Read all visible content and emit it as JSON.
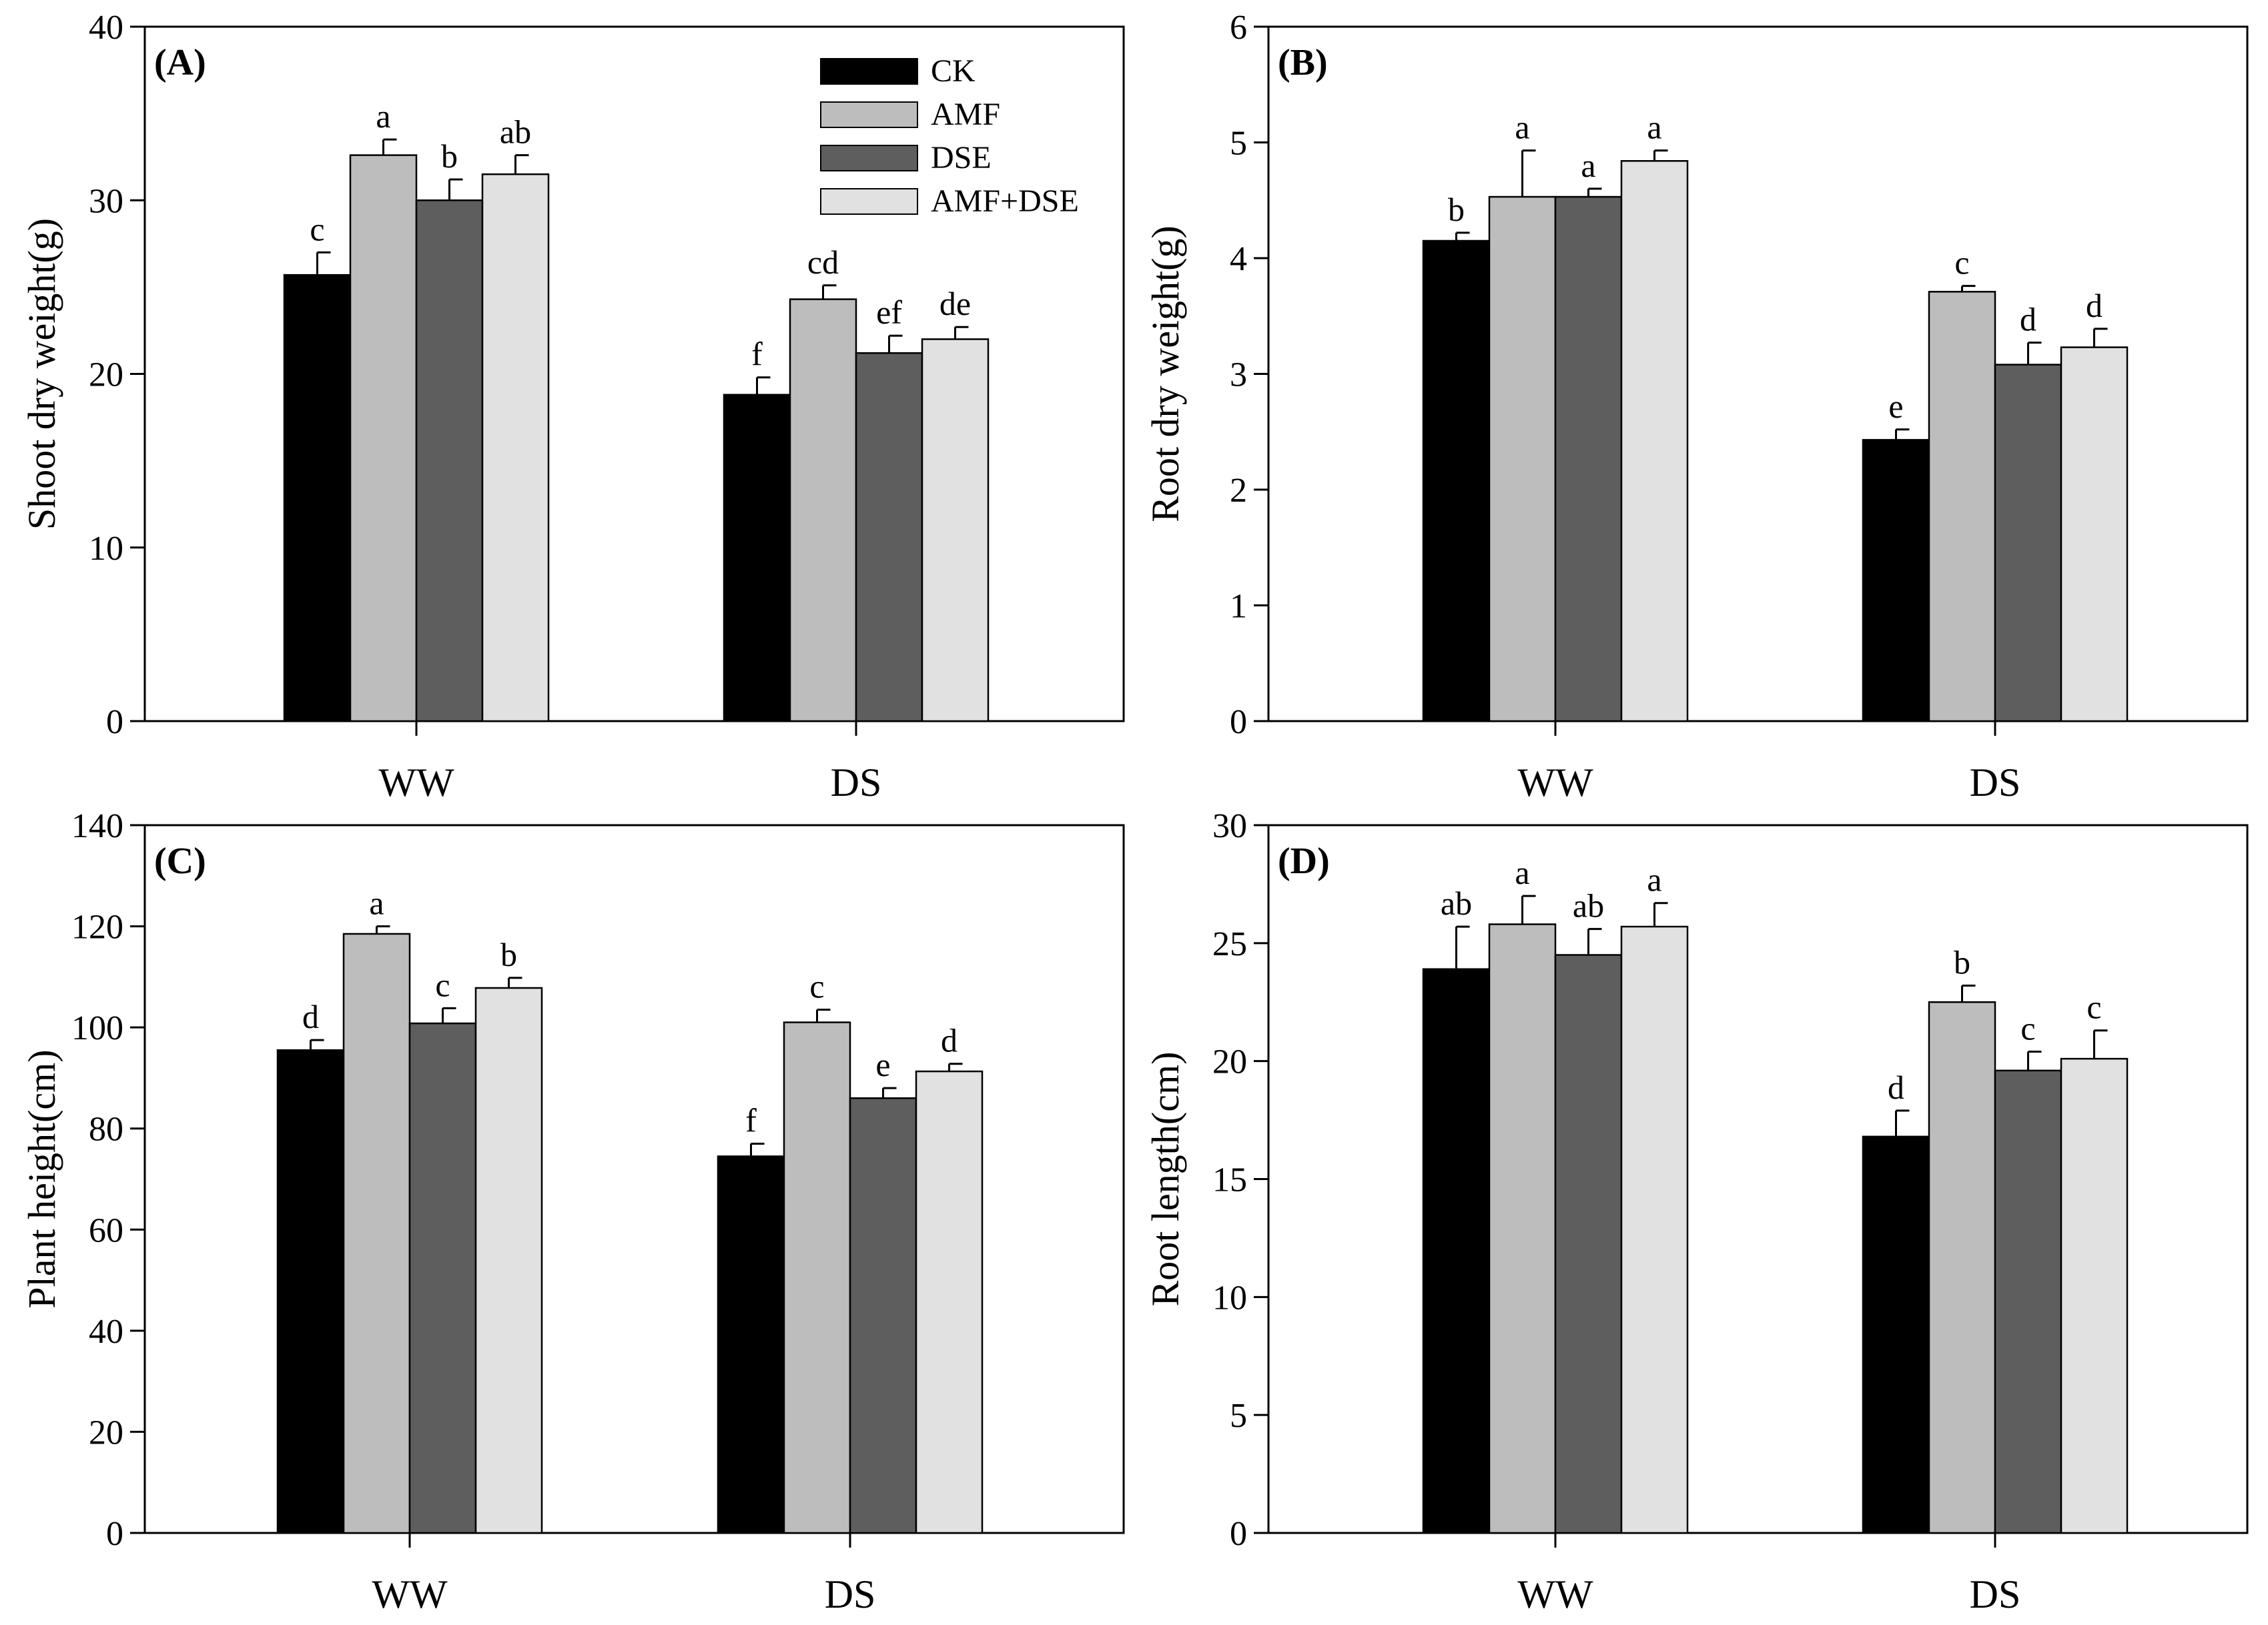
{
  "series_colors": [
    "#000000",
    "#bdbdbd",
    "#5e5e5e",
    "#e1e1e1"
  ],
  "chart_data": [
    {
      "type": "bar",
      "panel_label": "(A)",
      "ylabel": "Shoot dry weight(g)",
      "ylim": [
        0,
        40
      ],
      "yticks": [
        0,
        10,
        20,
        30,
        40
      ],
      "categories": [
        "WW",
        "DS"
      ],
      "legend_position": "top-right",
      "series": [
        {
          "name": "CK",
          "values": [
            25.7,
            18.8
          ],
          "errors": [
            1.3,
            1.0
          ],
          "letters": [
            "c",
            "f"
          ]
        },
        {
          "name": "AMF",
          "values": [
            32.6,
            24.3
          ],
          "errors": [
            0.9,
            0.8
          ],
          "letters": [
            "a",
            "cd"
          ]
        },
        {
          "name": "DSE",
          "values": [
            30.0,
            21.2
          ],
          "errors": [
            1.2,
            1.0
          ],
          "letters": [
            "b",
            "ef"
          ]
        },
        {
          "name": "AMF+DSE",
          "values": [
            31.5,
            22.0
          ],
          "errors": [
            1.1,
            0.7
          ],
          "letters": [
            "ab",
            "de"
          ]
        }
      ]
    },
    {
      "type": "bar",
      "panel_label": "(B)",
      "ylabel": "Root dry weight(g)",
      "ylim": [
        0,
        6
      ],
      "yticks": [
        0,
        1,
        2,
        3,
        4,
        5,
        6
      ],
      "categories": [
        "WW",
        "DS"
      ],
      "series": [
        {
          "values": [
            4.15,
            2.43
          ],
          "errors": [
            0.07,
            0.09
          ],
          "letters": [
            "b",
            "e"
          ]
        },
        {
          "values": [
            4.53,
            3.71
          ],
          "errors": [
            0.4,
            0.05
          ],
          "letters": [
            "a",
            "c"
          ]
        },
        {
          "values": [
            4.53,
            3.08
          ],
          "errors": [
            0.07,
            0.19
          ],
          "letters": [
            "a",
            "d"
          ]
        },
        {
          "values": [
            4.84,
            3.23
          ],
          "errors": [
            0.09,
            0.16
          ],
          "letters": [
            "a",
            "d"
          ]
        }
      ]
    },
    {
      "type": "bar",
      "panel_label": "(C)",
      "ylabel": "Plant height(cm)",
      "ylim": [
        0,
        140
      ],
      "yticks": [
        0,
        20,
        40,
        60,
        80,
        100,
        120,
        140
      ],
      "categories": [
        "WW",
        "DS"
      ],
      "series": [
        {
          "values": [
            95.5,
            74.5
          ],
          "errors": [
            2.0,
            2.5
          ],
          "letters": [
            "d",
            "f"
          ]
        },
        {
          "values": [
            118.5,
            101.0
          ],
          "errors": [
            1.5,
            2.5
          ],
          "letters": [
            "a",
            "c"
          ]
        },
        {
          "values": [
            100.8,
            86.0
          ],
          "errors": [
            3.0,
            2.0
          ],
          "letters": [
            "c",
            "e"
          ]
        },
        {
          "values": [
            107.8,
            91.3
          ],
          "errors": [
            2.0,
            1.5
          ],
          "letters": [
            "b",
            "d"
          ]
        }
      ]
    },
    {
      "type": "bar",
      "panel_label": "(D)",
      "ylabel": "Root  length(cm)",
      "ylim": [
        0,
        30
      ],
      "yticks": [
        0,
        5,
        10,
        15,
        20,
        25,
        30
      ],
      "categories": [
        "WW",
        "DS"
      ],
      "series": [
        {
          "values": [
            23.9,
            16.8
          ],
          "errors": [
            1.8,
            1.1
          ],
          "letters": [
            "ab",
            "d"
          ]
        },
        {
          "values": [
            25.8,
            22.5
          ],
          "errors": [
            1.2,
            0.7
          ],
          "letters": [
            "a",
            "b"
          ]
        },
        {
          "values": [
            24.5,
            19.6
          ],
          "errors": [
            1.1,
            0.8
          ],
          "letters": [
            "ab",
            "c"
          ]
        },
        {
          "values": [
            25.7,
            20.1
          ],
          "errors": [
            1.0,
            1.2
          ],
          "letters": [
            "a",
            "c"
          ]
        }
      ]
    }
  ]
}
